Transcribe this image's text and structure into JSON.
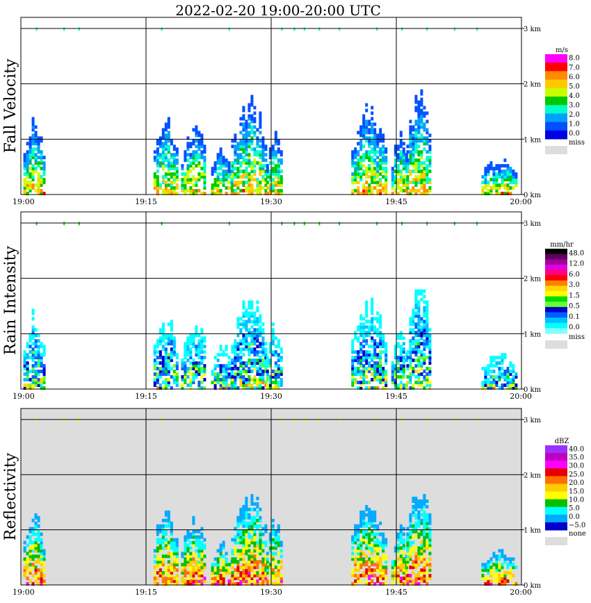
{
  "title": "2022-02-20   19:00-20:00 UTC",
  "time_ticks": [
    "19:00",
    "19:15",
    "19:30",
    "19:45",
    "20:00"
  ],
  "height_ticks": [
    "0 km",
    "1 km",
    "2 km",
    "3 km"
  ],
  "chart_data": [
    {
      "type": "heatmap",
      "ylabel": "Fall Velocity",
      "colorbar_unit": "m/s",
      "colorbar_labels": [
        "8.0",
        "7.0",
        "6.0",
        "5.0",
        "4.0",
        "3.0",
        "2.0",
        "1.0",
        "0.0"
      ],
      "colorbar_colors": [
        "#ff00ff",
        "#ff0000",
        "#ff8c00",
        "#ffc800",
        "#c8ff00",
        "#00c800",
        "#00ffc8",
        "#00a0ff",
        "#0050ff",
        "#0000e6"
      ],
      "missing_label": "miss",
      "missing_color": "#dddddd",
      "background": "#ffffff",
      "x_range": [
        "19:00",
        "20:00"
      ],
      "y_range_km": [
        0,
        3.2
      ],
      "grid": true
    },
    {
      "type": "heatmap",
      "ylabel": "Rain Intensity",
      "colorbar_unit": "mm/hr",
      "colorbar_labels": [
        "48.0",
        "12.0",
        "6.0",
        "3.0",
        "1.5",
        "0.5",
        "0.1",
        "0.0"
      ],
      "colorbar_colors": [
        "#000000",
        "#600060",
        "#a000a0",
        "#e000e0",
        "#ff0080",
        "#ff0000",
        "#ff8000",
        "#ffd700",
        "#ffff00",
        "#00dd00",
        "#66ff33",
        "#0000cc",
        "#0060ff",
        "#00bfff",
        "#00ffff",
        "#80ffff"
      ],
      "missing_label": "miss",
      "missing_color": "#dddddd",
      "background": "#ffffff",
      "x_range": [
        "19:00",
        "20:00"
      ],
      "y_range_km": [
        0,
        3.2
      ],
      "grid": true
    },
    {
      "type": "heatmap",
      "ylabel": "Reflectivity",
      "colorbar_unit": "dBZ",
      "colorbar_labels": [
        "40.0",
        "35.0",
        "30.0",
        "25.0",
        "20.0",
        "15.0",
        "10.0",
        "5.0",
        "0.0",
        "−5.0"
      ],
      "colorbar_colors": [
        "#9b30ff",
        "#c000c0",
        "#ff00ff",
        "#e60000",
        "#ff7000",
        "#ffcc00",
        "#ffff00",
        "#00c000",
        "#00ffff",
        "#00aaff",
        "#0000cc"
      ],
      "missing_label": "none",
      "missing_color": "#dddddd",
      "background": "#dddddd",
      "x_range": [
        "19:00",
        "20:00"
      ],
      "y_range_km": [
        0,
        3.2
      ],
      "grid": true
    }
  ]
}
